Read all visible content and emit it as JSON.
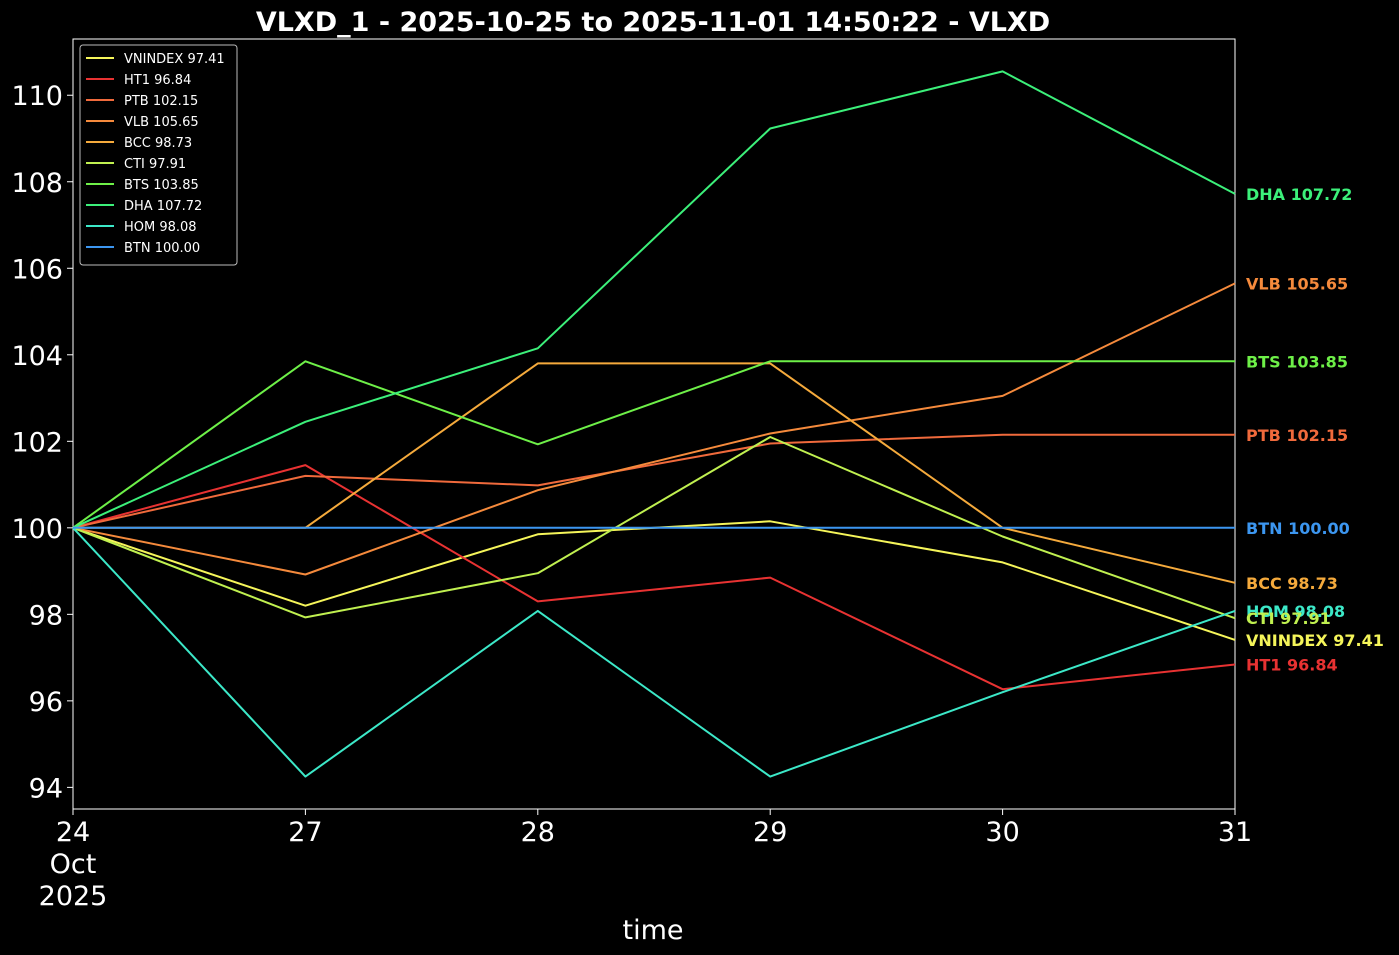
{
  "chart_data": {
    "type": "line",
    "title": "VLXD_1 - 2025-10-25 to 2025-11-01 14:50:22 - VLXD",
    "xlabel": "time",
    "ylabel": "",
    "x": [
      "24",
      "27",
      "28",
      "29",
      "30",
      "31"
    ],
    "x_tick_labels": [
      "24\nOct\n2025",
      "27",
      "28",
      "29",
      "30",
      "31"
    ],
    "ylim": [
      93.5,
      111.3
    ],
    "y_ticks": [
      94,
      96,
      98,
      100,
      102,
      104,
      106,
      108,
      110
    ],
    "background": "#000000",
    "grid": false,
    "legend_position": "top-left",
    "series": [
      {
        "name": "VNINDEX",
        "last": "97.41",
        "label": "VNINDEX 97.41",
        "color": "#f5f55a",
        "values": [
          100,
          98.2,
          99.85,
          100.15,
          99.2,
          97.41
        ]
      },
      {
        "name": "HT1",
        "last": "96.84",
        "label": "HT1 96.84",
        "color": "#e83232",
        "values": [
          100,
          101.45,
          98.3,
          98.85,
          96.27,
          96.84
        ]
      },
      {
        "name": "PTB",
        "last": "102.15",
        "label": "PTB 102.15",
        "color": "#f06a3c",
        "values": [
          100,
          101.2,
          100.98,
          101.95,
          102.15,
          102.15
        ]
      },
      {
        "name": "VLB",
        "last": "105.65",
        "label": "VLB 105.65",
        "color": "#f58a3c",
        "values": [
          100,
          98.92,
          100.87,
          102.18,
          103.05,
          105.65
        ]
      },
      {
        "name": "BCC",
        "last": "98.73",
        "label": "BCC 98.73",
        "color": "#f5aa3c",
        "values": [
          100,
          100,
          103.8,
          103.8,
          100,
          98.73
        ]
      },
      {
        "name": "CTI",
        "last": "97.91",
        "label": "CTI 97.91",
        "color": "#c0f050",
        "values": [
          100,
          97.93,
          98.95,
          102.1,
          99.8,
          97.91
        ]
      },
      {
        "name": "BTS",
        "last": "103.85",
        "label": "BTS 103.85",
        "color": "#6ef048",
        "values": [
          100,
          103.85,
          101.93,
          103.85,
          103.85,
          103.85
        ]
      },
      {
        "name": "DHA",
        "last": "107.72",
        "label": "DHA 107.72",
        "color": "#3cf07a",
        "values": [
          100,
          102.45,
          104.15,
          109.23,
          110.55,
          107.72
        ]
      },
      {
        "name": "HOM",
        "last": "98.08",
        "label": "HOM 98.08",
        "color": "#3ce8c8",
        "values": [
          100,
          94.25,
          98.08,
          94.25,
          96.2,
          98.08
        ]
      },
      {
        "name": "BTN",
        "last": "100.00",
        "label": "BTN 100.00",
        "color": "#3c96f0",
        "values": [
          100,
          100,
          100,
          100,
          100,
          100
        ]
      }
    ],
    "end_labels": [
      {
        "text": "DHA 107.72",
        "color": "#3cf07a",
        "y": 107.72
      },
      {
        "text": "VLB 105.65",
        "color": "#f58a3c",
        "y": 105.65
      },
      {
        "text": "BTS 103.85",
        "color": "#6ef048",
        "y": 103.85
      },
      {
        "text": "PTB 102.15",
        "color": "#f06a3c",
        "y": 102.15
      },
      {
        "text": "BTN 100.00",
        "color": "#3c96f0",
        "y": 100.0
      },
      {
        "text": "BCC 98.73",
        "color": "#f5aa3c",
        "y": 98.73
      },
      {
        "text": "HOM 98.08",
        "color": "#3ce8c8",
        "y": 98.08
      },
      {
        "text": "CTI 97.91",
        "color": "#c0f050",
        "y": 97.91
      },
      {
        "text": "VNINDEX 97.41",
        "color": "#f5f55a",
        "y": 97.41
      },
      {
        "text": "HT1 96.84",
        "color": "#e83232",
        "y": 96.84
      }
    ]
  }
}
